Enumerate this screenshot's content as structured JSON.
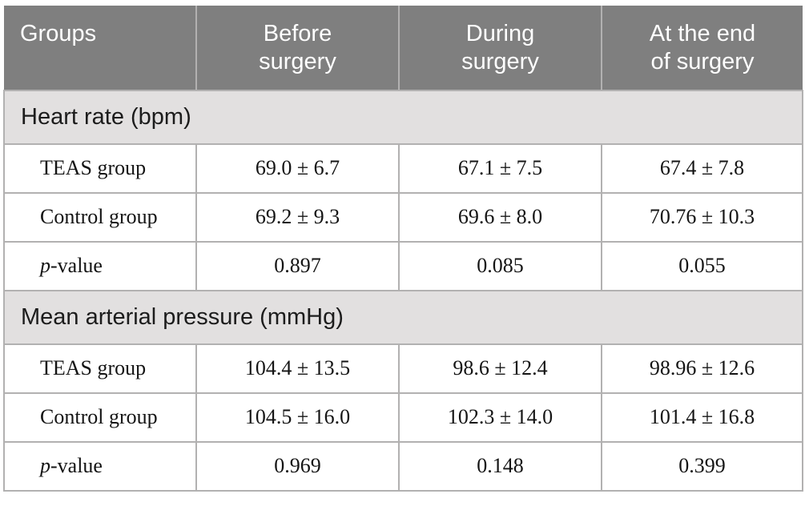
{
  "table": {
    "columns": [
      "Groups",
      "Before\nsurgery",
      "During\nsurgery",
      "At the end\nof surgery"
    ],
    "sections": [
      {
        "title": "Heart rate (bpm)",
        "rows": [
          {
            "label": "TEAS group",
            "values": [
              "69.0 ± 6.7",
              "67.1 ± 7.5",
              "67.4 ± 7.8"
            ]
          },
          {
            "label": "Control group",
            "values": [
              "69.2 ± 9.3",
              "69.6 ± 8.0",
              "70.76 ± 10.3"
            ]
          },
          {
            "label_italic": "p",
            "label": "-value",
            "values": [
              "0.897",
              "0.085",
              "0.055"
            ]
          }
        ]
      },
      {
        "title": "Mean arterial pressure (mmHg)",
        "rows": [
          {
            "label": "TEAS group",
            "values": [
              "104.4 ± 13.5",
              "98.6 ± 12.4",
              "98.96 ± 12.6"
            ]
          },
          {
            "label": "Control group",
            "values": [
              "104.5 ± 16.0",
              "102.3 ± 14.0",
              "101.4 ± 16.8"
            ]
          },
          {
            "label_italic": "p",
            "label": "-value",
            "values": [
              "0.969",
              "0.148",
              "0.399"
            ]
          }
        ]
      }
    ],
    "colors": {
      "header_bg": "#7f7f7f",
      "header_text": "#ffffff",
      "section_bg": "#e2e0e0",
      "body_bg": "#ffffff",
      "border": "#b2b1b1",
      "body_text": "#141414"
    }
  }
}
